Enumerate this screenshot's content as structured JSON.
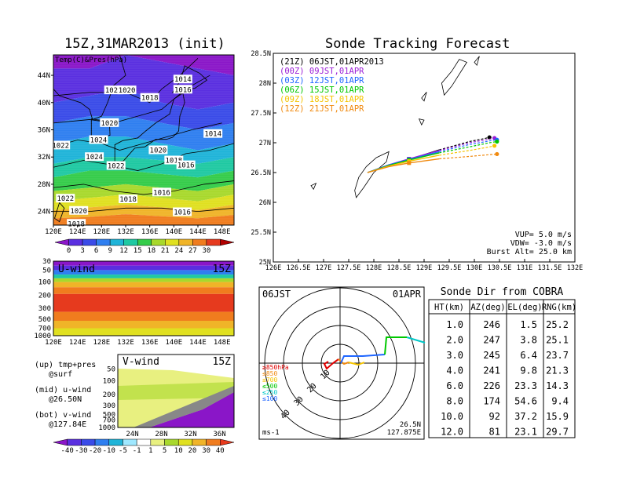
{
  "left": {
    "title": "15Z,31MAR2013 (init)",
    "map_label": "Temp(C)&Pres(hPa)",
    "lat_ticks": [
      "44N",
      "40N",
      "36N",
      "32N",
      "28N",
      "24N"
    ],
    "lon_ticks": [
      "120E",
      "124E",
      "128E",
      "132E",
      "136E",
      "140E",
      "144E",
      "148E"
    ],
    "temp_colorbar": [
      "0",
      "3",
      "6",
      "9",
      "12",
      "15",
      "18",
      "21",
      "24",
      "27",
      "30"
    ],
    "isobar_labels": [
      {
        "v": "1022",
        "lon": 130.0,
        "lat": 41.8
      },
      {
        "v": "1020",
        "lon": 132.2,
        "lat": 41.8
      },
      {
        "v": "1014",
        "lon": 141.5,
        "lat": 43.4
      },
      {
        "v": "1016",
        "lon": 141.5,
        "lat": 41.9
      },
      {
        "v": "1018",
        "lon": 136.0,
        "lat": 40.7
      },
      {
        "v": "1020",
        "lon": 129.3,
        "lat": 37.0
      },
      {
        "v": "1024",
        "lon": 127.5,
        "lat": 34.5
      },
      {
        "v": "1014",
        "lon": 146.5,
        "lat": 35.4
      },
      {
        "v": "1022",
        "lon": 121.2,
        "lat": 33.7
      },
      {
        "v": "1024",
        "lon": 126.8,
        "lat": 32.0
      },
      {
        "v": "1020",
        "lon": 137.4,
        "lat": 33.0
      },
      {
        "v": "1018",
        "lon": 140.0,
        "lat": 31.5
      },
      {
        "v": "1016",
        "lon": 142.0,
        "lat": 30.8
      },
      {
        "v": "1022",
        "lon": 130.4,
        "lat": 30.7
      },
      {
        "v": "1016",
        "lon": 138.0,
        "lat": 26.8
      },
      {
        "v": "1018",
        "lon": 132.4,
        "lat": 25.8
      },
      {
        "v": "1022",
        "lon": 122.0,
        "lat": 25.9
      },
      {
        "v": "1020",
        "lon": 124.2,
        "lat": 24.1
      },
      {
        "v": "1016",
        "lon": 141.4,
        "lat": 23.9
      },
      {
        "v": "1018",
        "lon": 123.8,
        "lat": 22.2
      }
    ],
    "uwind_title": "U-wind",
    "uwind_time": "15Z",
    "uwind_pressure_ticks": [
      "30",
      "50",
      "100",
      "200",
      "300",
      "500",
      "700",
      "1000"
    ],
    "vwind_title": "V-wind",
    "vwind_time": "15Z",
    "vwind_pressure_ticks": [
      "50",
      "100",
      "200",
      "300",
      "500",
      "700",
      "1000"
    ],
    "vwind_lat_ticks": [
      "24N",
      "28N",
      "32N",
      "36N"
    ],
    "wind_colorbar": [
      "-40",
      "-30",
      "-20",
      "-10",
      "-5",
      "-1",
      "1",
      "5",
      "10",
      "20",
      "30",
      "40"
    ],
    "notes": [
      {
        "a": "(up) tmp+pres",
        "b": "@surf"
      },
      {
        "a": "(mid) u-wind",
        "b": "@26.50N"
      },
      {
        "a": "(bot) v-wind",
        "b": "@127.84E"
      }
    ]
  },
  "chart_data": {
    "type": "line",
    "title": "Sonde Tracking Forecast",
    "xlabel": "",
    "ylabel": "",
    "xlim": [
      126,
      132
    ],
    "ylim": [
      25,
      28.5
    ],
    "x_ticks": [
      "126E",
      "126.5E",
      "127E",
      "127.5E",
      "128E",
      "128.5E",
      "129E",
      "129.5E",
      "130E",
      "130.5E",
      "131E",
      "131.5E",
      "132E"
    ],
    "y_ticks": [
      "25N",
      "25.5N",
      "26N",
      "26.5N",
      "27N",
      "27.5N",
      "28N",
      "28.5N"
    ],
    "series": [
      {
        "name": "(21Z) 06JST,01APR2013",
        "color": "#000000",
        "x": [
          127.875,
          128.3,
          128.7,
          129.3,
          129.9,
          130.2,
          130.3
        ],
        "y": [
          26.5,
          26.62,
          26.72,
          26.88,
          27.02,
          27.07,
          27.09
        ]
      },
      {
        "name": "(00Z) 09JST,01APR",
        "color": "#9b1dd6",
        "x": [
          127.875,
          128.3,
          128.7,
          129.3,
          129.9,
          130.3,
          130.4
        ],
        "y": [
          26.5,
          26.63,
          26.73,
          26.87,
          27.0,
          27.06,
          27.08
        ]
      },
      {
        "name": "(03Z) 12JST,01APR",
        "color": "#1f66ff",
        "x": [
          127.875,
          128.3,
          128.7,
          129.3,
          129.9,
          130.3,
          130.45
        ],
        "y": [
          26.5,
          26.63,
          26.72,
          26.85,
          26.97,
          27.03,
          27.05
        ]
      },
      {
        "name": "(06Z) 15JST,01APR",
        "color": "#00c800",
        "x": [
          127.875,
          128.3,
          128.7,
          129.3,
          129.9,
          130.3,
          130.45
        ],
        "y": [
          26.5,
          26.62,
          26.71,
          26.83,
          26.93,
          27.0,
          27.02
        ]
      },
      {
        "name": "(09Z) 18JST,01APR",
        "color": "#f5c400",
        "x": [
          127.875,
          128.3,
          128.7,
          129.3,
          129.9,
          130.3,
          130.4
        ],
        "y": [
          26.5,
          26.61,
          26.69,
          26.79,
          26.87,
          26.93,
          26.95
        ]
      },
      {
        "name": "(12Z) 21JST,01APR",
        "color": "#f08a10",
        "x": [
          127.875,
          128.3,
          128.7,
          129.3,
          129.9,
          130.3,
          130.45
        ],
        "y": [
          26.5,
          26.6,
          26.66,
          26.73,
          26.77,
          26.8,
          26.81
        ]
      }
    ],
    "params": [
      "VUP= 5.0 m/s",
      "VDW= -3.0 m/s",
      "Burst Alt= 25.0 km"
    ]
  },
  "polar": {
    "time": "06JST",
    "date": "01APR",
    "rings": [
      "10",
      "20",
      "30",
      "40"
    ],
    "unit": "ms-1",
    "location_a": "26.5N",
    "location_b": "127.875E",
    "legend": [
      {
        "t": "≥850hPa",
        "c": "#e00000"
      },
      {
        "t": "≤850",
        "c": "#f08a10"
      },
      {
        "t": "≤700",
        "c": "#f5c400"
      },
      {
        "t": "≤500",
        "c": "#00c800"
      },
      {
        "t": "≤250",
        "c": "#00c8c8"
      },
      {
        "t": "≤100",
        "c": "#1f66ff"
      }
    ]
  },
  "table": {
    "title": "Sonde Dir from COBRA",
    "headers": [
      "HT(km)",
      "AZ(deg)",
      "EL(deg)",
      "RNG(km)"
    ],
    "rows": [
      [
        "1.0",
        "246",
        "1.5",
        "25.2"
      ],
      [
        "2.0",
        "247",
        "3.8",
        "25.1"
      ],
      [
        "3.0",
        "245",
        "6.4",
        "23.7"
      ],
      [
        "4.0",
        "241",
        "9.8",
        "21.3"
      ],
      [
        "6.0",
        "226",
        "23.3",
        "14.3"
      ],
      [
        "8.0",
        "174",
        "54.6",
        "9.4"
      ],
      [
        "10.0",
        "92",
        "37.2",
        "15.9"
      ],
      [
        "12.0",
        "81",
        "23.1",
        "29.7"
      ]
    ]
  },
  "colors": {
    "temp_scale": [
      "#8a16c8",
      "#5a2fe0",
      "#3a4be8",
      "#2f7ff0",
      "#1fb4d8",
      "#1fc9a2",
      "#35cc4a",
      "#a8d82c",
      "#e0e020",
      "#f0b428",
      "#f07c1e",
      "#e63a1e",
      "#b00000"
    ],
    "wind_scale": [
      "#8a16c8",
      "#5a2fe0",
      "#3a4be8",
      "#2f7ff0",
      "#1fb4d8",
      "#9fe8ff",
      "#ffffff",
      "#e8f080",
      "#a8d82c",
      "#e0e020",
      "#f0b428",
      "#f07c1e",
      "#e63a1e"
    ]
  }
}
